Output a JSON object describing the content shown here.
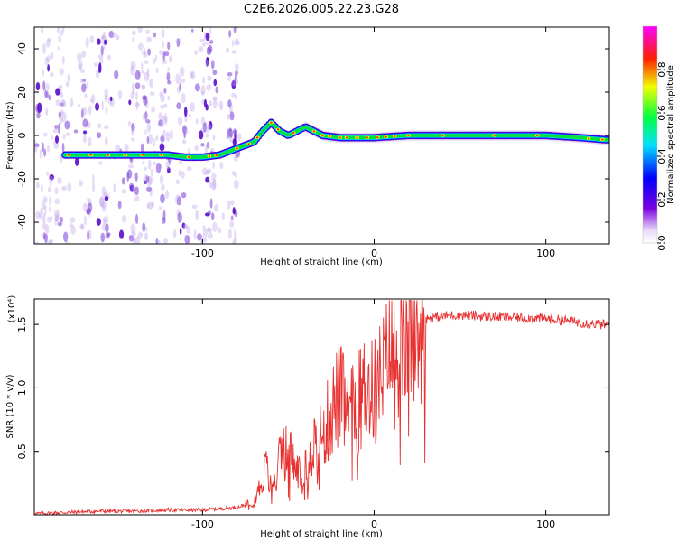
{
  "figure": {
    "title": "C2E6.2026.005.22.23.G28"
  },
  "chart_data": [
    {
      "type": "heatmap",
      "title": "C2E6.2026.005.22.23.G28",
      "xlabel": "Height of straight line (km)",
      "ylabel": "Frequency (Hz)",
      "xlim": [
        -198,
        137
      ],
      "ylim": [
        -50,
        50
      ],
      "xticks": [
        -100,
        0,
        100
      ],
      "yticks": [
        -40,
        -20,
        0,
        20,
        40
      ],
      "grid": false,
      "colorbar": {
        "label": "Normalized spectral amplitude",
        "range": [
          0,
          1
        ],
        "ticks": [
          "0.0",
          "0.2",
          "0.4",
          "0.6",
          "0.8"
        ],
        "colormap": "rainbow (violet-blue-cyan-green-yellow-red-magenta)"
      },
      "signal_trace": {
        "x": [
          -180,
          -160,
          -140,
          -120,
          -110,
          -100,
          -90,
          -80,
          -70,
          -65,
          -60,
          -55,
          -50,
          -45,
          -40,
          -35,
          -30,
          -20,
          -10,
          0,
          20,
          50,
          80,
          100,
          120,
          135
        ],
        "frequency": [
          -9,
          -9,
          -9,
          -9,
          -10,
          -10,
          -9,
          -6,
          -3,
          2,
          6,
          2,
          0,
          2,
          4,
          2,
          0,
          -1,
          -1,
          -1,
          0,
          0,
          0,
          0,
          -1,
          -2
        ]
      },
      "noise_region_x": [
        -198,
        -78
      ]
    },
    {
      "type": "line",
      "xlabel": "Height of straight line (km)",
      "ylabel": "SNR (10 * v/v)",
      "y_multiplier": "(x10⁴)",
      "xlim": [
        -198,
        137
      ],
      "ylim": [
        0,
        1.7
      ],
      "xticks": [
        -100,
        0,
        100
      ],
      "yticks": [
        "0.5",
        "1.0",
        "1.5"
      ],
      "grid": false,
      "series": [
        {
          "color": "#e8302f",
          "x": [
            -198,
            -180,
            -160,
            -140,
            -120,
            -100,
            -90,
            -80,
            -75,
            -70,
            -66,
            -63,
            -60,
            -55,
            -50,
            -45,
            -40,
            -35,
            -30,
            -25,
            -20,
            -15,
            -10,
            -5,
            0,
            5,
            10,
            15,
            20,
            25,
            30,
            40,
            50,
            60,
            80,
            100,
            120,
            135
          ],
          "values": [
            0.01,
            0.02,
            0.03,
            0.03,
            0.04,
            0.04,
            0.05,
            0.06,
            0.08,
            0.12,
            0.25,
            0.4,
            0.2,
            0.45,
            0.55,
            0.35,
            0.45,
            0.6,
            0.65,
            0.85,
            1.0,
            0.8,
            0.9,
            1.05,
            1.0,
            1.15,
            1.35,
            1.3,
            1.45,
            1.5,
            1.55,
            1.57,
            1.58,
            1.57,
            1.56,
            1.55,
            1.52,
            1.5
          ]
        }
      ]
    }
  ]
}
